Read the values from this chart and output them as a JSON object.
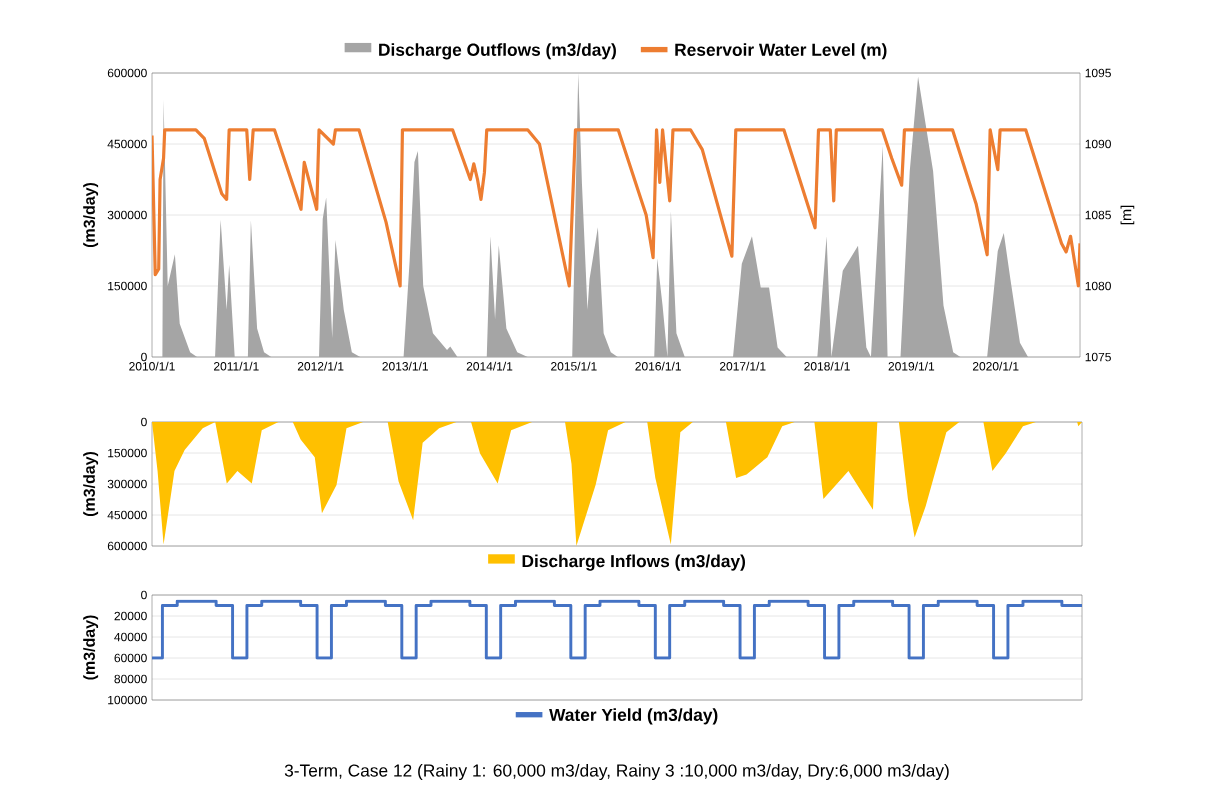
{
  "chart_data": [
    {
      "type": "area",
      "ylabel": "(m3/day)",
      "y2label": "[m]",
      "legend": "top",
      "grid": "y",
      "xlim": [
        "2010-01-01",
        "2020-12-31"
      ],
      "xticks": [
        {
          "value": "2010-01-01",
          "label": "2010/1/1"
        },
        {
          "value": "2011-01-01",
          "label": "2011/1/1"
        },
        {
          "value": "2012-01-01",
          "label": "2012/1/1"
        },
        {
          "value": "2013-01-01",
          "label": "2013/1/1"
        },
        {
          "value": "2014-01-01",
          "label": "2014/1/1"
        },
        {
          "value": "2015-01-01",
          "label": "2015/1/1"
        },
        {
          "value": "2016-01-01",
          "label": "2016/1/1"
        },
        {
          "value": "2017-01-01",
          "label": "2017/1/1"
        },
        {
          "value": "2018-01-01",
          "label": "2018/1/1"
        },
        {
          "value": "2019-01-01",
          "label": "2019/1/1"
        },
        {
          "value": "2020-01-01",
          "label": "2020/1/1"
        }
      ],
      "ylim": [
        0,
        600000
      ],
      "yticks": [
        0,
        150000,
        300000,
        450000,
        600000
      ],
      "y2lim": [
        1075,
        1095
      ],
      "y2ticks": [
        1075,
        1080,
        1085,
        1090,
        1095
      ],
      "series": [
        {
          "name": "Discharge Outflows (m3/day)",
          "type": "area",
          "color": "#a5a5a5",
          "x": [
            "2010-01-01",
            "2010-02-15",
            "2010-02-20",
            "2010-03-10",
            "2010-04-10",
            "2010-05-01",
            "2010-06-15",
            "2010-07-15",
            "2010-10-01",
            "2010-10-25",
            "2010-11-20",
            "2010-12-01",
            "2010-12-25",
            "2011-02-20",
            "2011-03-05",
            "2011-04-01",
            "2011-05-01",
            "2011-06-01",
            "2011-12-25",
            "2012-01-10",
            "2012-01-25",
            "2012-02-20",
            "2012-03-05",
            "2012-04-10",
            "2012-05-15",
            "2012-06-20",
            "2012-12-25",
            "2013-01-20",
            "2013-02-10",
            "2013-02-25",
            "2013-03-20",
            "2013-05-01",
            "2013-07-01",
            "2013-07-15",
            "2013-08-15",
            "2013-12-20",
            "2014-01-05",
            "2014-01-25",
            "2014-02-10",
            "2014-03-15",
            "2014-05-01",
            "2014-06-15",
            "2014-12-25",
            "2015-01-20",
            "2015-02-05",
            "2015-03-01",
            "2015-03-10",
            "2015-04-15",
            "2015-05-10",
            "2015-06-10",
            "2015-07-10",
            "2015-12-15",
            "2015-12-28",
            "2016-01-20",
            "2016-02-10",
            "2016-02-25",
            "2016-03-20",
            "2016-04-25",
            "2016-11-20",
            "2016-12-28",
            "2017-02-10",
            "2017-03-20",
            "2017-04-25",
            "2017-06-01",
            "2017-07-10",
            "2017-11-20",
            "2017-12-30",
            "2018-01-20",
            "2018-03-10",
            "2018-05-15",
            "2018-06-20",
            "2018-07-10",
            "2018-08-30",
            "2018-09-20",
            "2018-11-15",
            "2018-12-25",
            "2019-01-30",
            "2019-04-05",
            "2019-05-20",
            "2019-07-01",
            "2019-08-01",
            "2019-11-25",
            "2020-01-10",
            "2020-02-05",
            "2020-03-05",
            "2020-04-15",
            "2020-05-20",
            "2020-12-31"
          ],
          "values": [
            0,
            0,
            544000,
            150000,
            217000,
            70000,
            10000,
            0,
            0,
            290000,
            100000,
            195000,
            0,
            0,
            289000,
            60000,
            10000,
            0,
            0,
            292000,
            337000,
            40000,
            247000,
            100000,
            10000,
            0,
            0,
            202000,
            412000,
            435000,
            150000,
            50000,
            15000,
            22000,
            0,
            0,
            255000,
            80000,
            236000,
            60000,
            10000,
            0,
            0,
            600000,
            367000,
            100000,
            165000,
            274000,
            50000,
            10000,
            0,
            0,
            208000,
            109000,
            0,
            308000,
            50000,
            0,
            0,
            197000,
            255000,
            147000,
            147000,
            20000,
            0,
            0,
            255000,
            0,
            182000,
            235000,
            20000,
            0,
            446000,
            0,
            0,
            393000,
            592000,
            393000,
            109000,
            10000,
            0,
            0,
            224000,
            262000,
            163000,
            30000,
            0,
            0
          ]
        },
        {
          "name": "Reservoir Water Level (m)",
          "type": "line",
          "axis": "y2",
          "color": "#ed7d31",
          "x": [
            "2010-01-01",
            "2010-01-15",
            "2010-01-30",
            "2010-02-05",
            "2010-02-20",
            "2010-02-25",
            "2010-07-10",
            "2010-08-15",
            "2010-10-30",
            "2010-11-20",
            "2010-12-01",
            "2011-02-15",
            "2011-02-28",
            "2011-03-15",
            "2011-06-15",
            "2011-10-08",
            "2011-10-22",
            "2011-12-15",
            "2011-12-25",
            "2012-02-25",
            "2012-03-05",
            "2012-06-15",
            "2012-10-10",
            "2012-12-10",
            "2012-12-20",
            "2013-07-25",
            "2013-10-10",
            "2013-10-25",
            "2013-11-10",
            "2013-11-25",
            "2013-12-10",
            "2013-12-20",
            "2014-06-15",
            "2014-08-05",
            "2014-12-12",
            "2015-01-08",
            "2015-07-12",
            "2015-11-10",
            "2015-12-10",
            "2015-12-25",
            "2016-01-08",
            "2016-01-20",
            "2016-02-20",
            "2016-03-05",
            "2016-05-20",
            "2016-07-10",
            "2016-11-15",
            "2016-12-02",
            "2017-06-28",
            "2017-11-10",
            "2017-11-25",
            "2018-01-15",
            "2018-01-30",
            "2018-02-10",
            "2018-08-28",
            "2018-10-08",
            "2018-11-20",
            "2018-12-02",
            "2019-06-28",
            "2019-10-08",
            "2019-11-25",
            "2019-12-08",
            "2020-01-10",
            "2020-01-20",
            "2020-05-10",
            "2020-10-12",
            "2020-11-01",
            "2020-11-20",
            "2020-12-24",
            "2020-12-31"
          ],
          "values": [
            1090.6,
            1080.8,
            1081.2,
            1087.5,
            1089,
            1091,
            1091,
            1090.4,
            1086.5,
            1086.1,
            1091,
            1091,
            1087.5,
            1091,
            1091,
            1085.4,
            1088.7,
            1085.4,
            1091,
            1090,
            1091,
            1091,
            1084.5,
            1080,
            1091,
            1091,
            1087.5,
            1088.6,
            1087.5,
            1086.1,
            1088,
            1091,
            1091,
            1090,
            1080,
            1091,
            1091,
            1085,
            1082,
            1091,
            1087.3,
            1091,
            1086,
            1091,
            1091,
            1089.6,
            1082.1,
            1091,
            1091,
            1084.1,
            1091,
            1091,
            1086,
            1091,
            1091,
            1089,
            1087.1,
            1091,
            1091,
            1085.8,
            1082.2,
            1091,
            1088.2,
            1091,
            1091,
            1083,
            1082.4,
            1083.5,
            1080,
            1083
          ]
        }
      ]
    },
    {
      "type": "area",
      "ylabel": "(m3/day)",
      "legend": "bottom",
      "grid": "y",
      "tick_labels": "y",
      "xlim": [
        "2010-01-01",
        "2020-12-31"
      ],
      "ylim": [
        600000,
        0
      ],
      "yticks": [
        0,
        150000,
        300000,
        450000,
        600000
      ],
      "series": [
        {
          "name": "Discharge Inflows (m3/day)",
          "color": "#ffc000",
          "x": [
            "2010-01-01",
            "2010-01-25",
            "2010-02-20",
            "2010-04-08",
            "2010-05-22",
            "2010-08-08",
            "2010-10-01",
            "2010-11-20",
            "2011-01-05",
            "2011-03-08",
            "2011-04-20",
            "2011-07-01",
            "2011-09-01",
            "2011-10-05",
            "2011-12-05",
            "2012-01-05",
            "2012-03-08",
            "2012-04-20",
            "2012-07-01",
            "2012-10-15",
            "2012-12-01",
            "2013-02-02",
            "2013-03-15",
            "2013-05-25",
            "2013-08-08",
            "2013-10-10",
            "2013-11-18",
            "2014-02-02",
            "2014-04-01",
            "2014-07-01",
            "2014-11-20",
            "2014-12-18",
            "2015-01-08",
            "2015-04-01",
            "2015-05-25",
            "2015-08-08",
            "2015-11-10",
            "2015-12-15",
            "2016-02-20",
            "2016-04-01",
            "2016-05-25",
            "2016-10-15",
            "2016-11-28",
            "2017-01-12",
            "2017-04-12",
            "2017-06-15",
            "2017-08-08",
            "2017-11-01",
            "2017-12-10",
            "2018-03-28",
            "2018-07-12",
            "2018-07-31",
            "2018-11-01",
            "2018-12-10",
            "2019-01-08",
            "2019-02-25",
            "2019-05-25",
            "2019-07-20",
            "2019-11-01",
            "2019-12-10",
            "2020-02-05",
            "2020-04-20",
            "2020-06-15",
            "2020-12-10",
            "2020-12-15",
            "2020-12-31"
          ],
          "values": [
            0,
            237000,
            593000,
            237000,
            136000,
            30000,
            0,
            298000,
            237000,
            298000,
            40000,
            0,
            0,
            85000,
            170000,
            441000,
            305000,
            30000,
            0,
            0,
            288000,
            475000,
            100000,
            30000,
            0,
            0,
            152000,
            298000,
            40000,
            0,
            0,
            203000,
            600000,
            305000,
            40000,
            0,
            0,
            271000,
            593000,
            50000,
            0,
            0,
            271000,
            254000,
            170000,
            20000,
            0,
            0,
            373000,
            237000,
            424000,
            0,
            0,
            373000,
            559000,
            407000,
            50000,
            0,
            0,
            237000,
            152000,
            20000,
            0,
            0,
            20000,
            0
          ]
        }
      ]
    },
    {
      "type": "step",
      "ylabel": "(m3/day)",
      "legend": "bottom",
      "grid": "y",
      "tick_labels": "y",
      "xlim": [
        "2010-01-01",
        "2020-12-31"
      ],
      "ylim": [
        100000,
        0
      ],
      "yticks": [
        0,
        20000,
        40000,
        60000,
        80000,
        100000
      ],
      "annotations": [
        "3-Term, Case 12 (Rainy 1: 60,000 m3/day, Rainy 3 :10,000 m3/day, Dry:6,000 m3/day)"
      ],
      "series": [
        {
          "name": "Water Yield   (m3/day)",
          "color": "#4472c4",
          "x": [
            "2010-01-01",
            "2010-02-15",
            "2010-04-20",
            "2010-10-05",
            "2010-12-15",
            "2011-02-15",
            "2011-04-20",
            "2011-10-05",
            "2011-12-15",
            "2012-02-15",
            "2012-04-20",
            "2012-10-05",
            "2012-12-15",
            "2013-02-15",
            "2013-04-20",
            "2013-10-05",
            "2013-12-15",
            "2014-02-15",
            "2014-04-20",
            "2014-10-05",
            "2014-12-15",
            "2015-02-15",
            "2015-04-20",
            "2015-10-05",
            "2015-12-15",
            "2016-02-15",
            "2016-04-20",
            "2016-10-05",
            "2016-12-15",
            "2017-02-15",
            "2017-04-20",
            "2017-10-05",
            "2017-12-15",
            "2018-02-15",
            "2018-04-20",
            "2018-10-05",
            "2018-12-15",
            "2019-02-15",
            "2019-04-20",
            "2019-10-05",
            "2019-12-15",
            "2020-02-15",
            "2020-04-20",
            "2020-10-05",
            "2020-12-31"
          ],
          "values": [
            60000,
            10000,
            6000,
            10000,
            60000,
            10000,
            6000,
            10000,
            60000,
            10000,
            6000,
            10000,
            60000,
            10000,
            6000,
            10000,
            60000,
            10000,
            6000,
            10000,
            60000,
            10000,
            6000,
            10000,
            60000,
            10000,
            6000,
            10000,
            60000,
            10000,
            6000,
            10000,
            60000,
            10000,
            6000,
            10000,
            60000,
            10000,
            6000,
            10000,
            60000,
            10000,
            6000,
            10000,
            10000
          ]
        }
      ]
    }
  ]
}
